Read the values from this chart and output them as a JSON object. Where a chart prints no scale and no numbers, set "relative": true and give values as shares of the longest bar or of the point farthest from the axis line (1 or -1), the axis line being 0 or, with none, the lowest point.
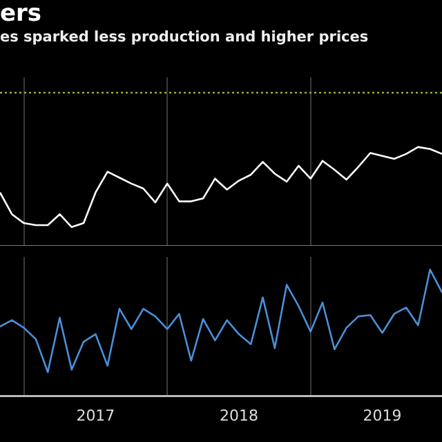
{
  "chart_data": [
    {
      "type": "line",
      "title": "ers",
      "subtitle": "es sparked less production and higher prices",
      "relative": true,
      "x": [
        "2016-11",
        "2016-12",
        "2017-01",
        "2017-02",
        "2017-03",
        "2017-04",
        "2017-05",
        "2017-06",
        "2017-07",
        "2017-08",
        "2017-09",
        "2017-10",
        "2017-11",
        "2017-12",
        "2018-01",
        "2018-02",
        "2018-03",
        "2018-04",
        "2018-05",
        "2018-06",
        "2018-07",
        "2018-08",
        "2018-09",
        "2018-10",
        "2018-11",
        "2018-12",
        "2019-01",
        "2019-02",
        "2019-03",
        "2019-04",
        "2019-05",
        "2019-06",
        "2019-07",
        "2019-08",
        "2019-09",
        "2019-10",
        "2019-11",
        "2019-12"
      ],
      "series": [
        {
          "color": "#ffffff",
          "values": [
            0.54,
            0.32,
            0.23,
            0.21,
            0.21,
            0.32,
            0.19,
            0.23,
            0.54,
            0.75,
            0.69,
            0.63,
            0.58,
            0.44,
            0.63,
            0.45,
            0.45,
            0.48,
            0.68,
            0.57,
            0.66,
            0.72,
            0.85,
            0.73,
            0.65,
            0.81,
            0.68,
            0.86,
            0.77,
            0.67,
            0.8,
            0.94,
            0.91,
            0.88,
            0.93,
            1,
            0.98,
            0.93
          ]
        }
      ],
      "xlim": [
        "2016-11",
        "2019-12"
      ],
      "xticks": [
        {
          "value": "2017-01",
          "label": null
        },
        {
          "value": "2018-01",
          "label": null
        },
        {
          "value": "2019-01",
          "label": null
        }
      ],
      "ref_lines": [
        {
          "axis": "y",
          "value": 1.55,
          "color": "#8fae3c",
          "line_style": "dotted"
        }
      ],
      "grid": "x",
      "tick_labels": false,
      "legend": false
    },
    {
      "type": "line",
      "relative": true,
      "x": [
        "2016-11",
        "2016-12",
        "2017-01",
        "2017-02",
        "2017-03",
        "2017-04",
        "2017-05",
        "2017-06",
        "2017-07",
        "2017-08",
        "2017-09",
        "2017-10",
        "2017-11",
        "2017-12",
        "2018-01",
        "2018-02",
        "2018-03",
        "2018-04",
        "2018-05",
        "2018-06",
        "2018-07",
        "2018-08",
        "2018-09",
        "2018-10",
        "2018-11",
        "2018-12",
        "2019-01",
        "2019-02",
        "2019-03",
        "2019-04",
        "2019-05",
        "2019-06",
        "2019-07",
        "2019-08",
        "2019-09",
        "2019-10",
        "2019-11",
        "2019-12"
      ],
      "series": [
        {
          "color": "#4a90d9",
          "values": [
            0.55,
            0.6,
            0.54,
            0.45,
            0.19,
            0.62,
            0.21,
            0.43,
            0.49,
            0.24,
            0.69,
            0.53,
            0.69,
            0.63,
            0.53,
            0.65,
            0.28,
            0.61,
            0.44,
            0.6,
            0.49,
            0.41,
            0.78,
            0.38,
            0.88,
            0.71,
            0.51,
            0.74,
            0.37,
            0.54,
            0.63,
            0.64,
            0.5,
            0.65,
            0.7,
            0.56,
            1,
            0.82
          ]
        }
      ],
      "xlim": [
        "2016-11",
        "2019-12"
      ],
      "xticks": [
        {
          "value": "2017-01",
          "label": null
        },
        {
          "value": "2017-07",
          "label": "2017"
        },
        {
          "value": "2018-01",
          "label": null
        },
        {
          "value": "2018-07",
          "label": "2018"
        },
        {
          "value": "2019-01",
          "label": null
        },
        {
          "value": "2019-07",
          "label": "2019"
        }
      ],
      "grid": "x",
      "tick_labels": "x",
      "legend": false
    }
  ]
}
